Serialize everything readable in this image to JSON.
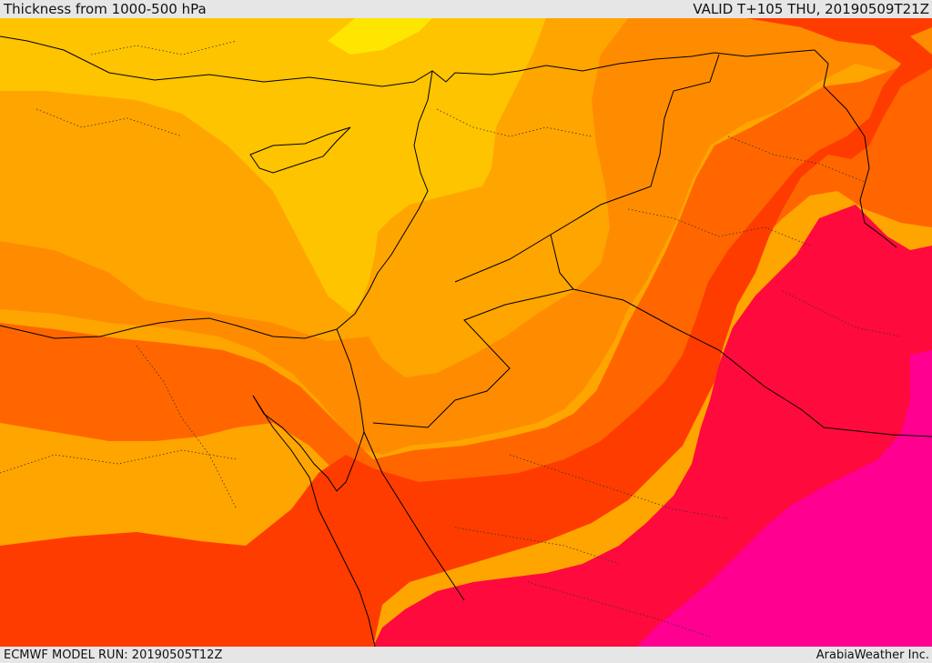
{
  "header": {
    "title": "Thickness from 1000-500 hPa",
    "valid": "VALID T+105 THU, 20190509T21Z"
  },
  "footer": {
    "model_run": "ECMWF MODEL RUN: 20190505T12Z",
    "credit": "ArabiaWeather Inc."
  },
  "palette": {
    "yellow": "#ffe600",
    "gold": "#ffc400",
    "amber": "#ffa500",
    "orange": "#ff8c00",
    "dark_orange": "#ff6600",
    "red_orange": "#ff3c00",
    "crimson": "#ff0a3c",
    "magenta": "#ff0090",
    "border": "#000000"
  }
}
